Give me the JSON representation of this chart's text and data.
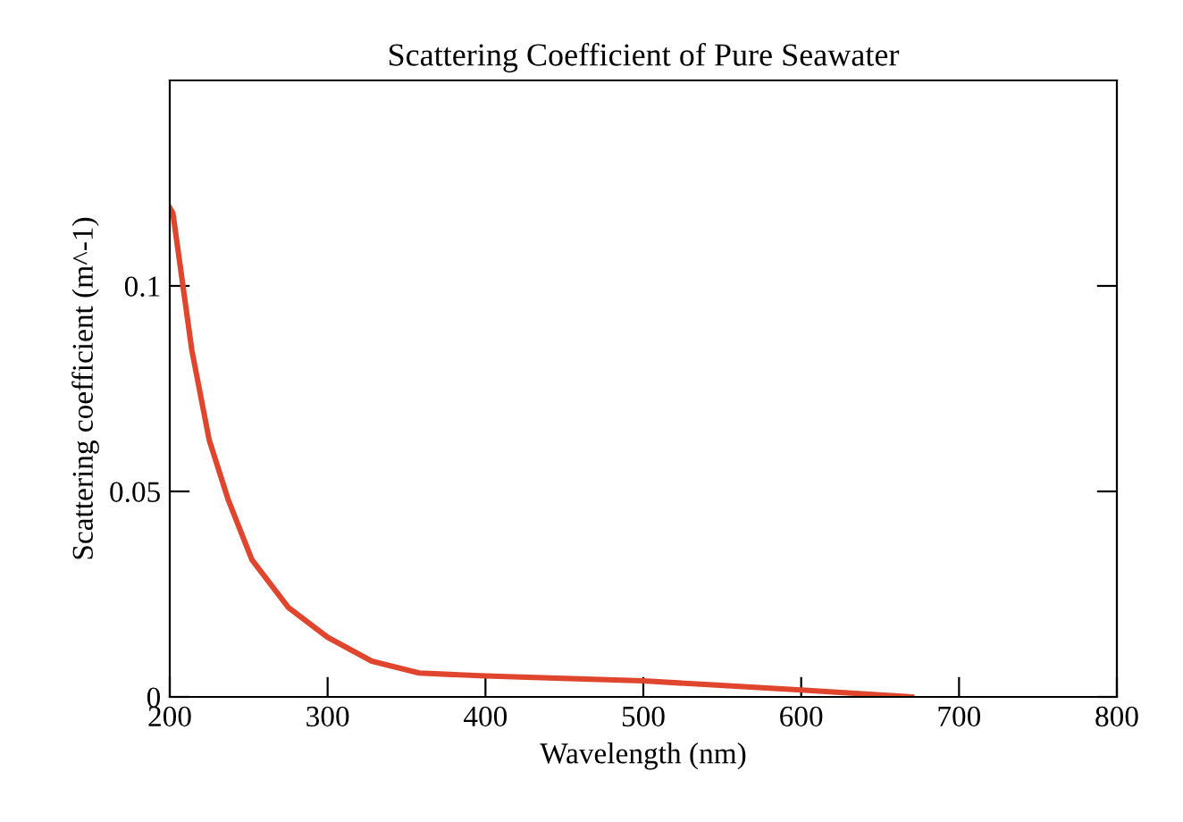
{
  "chart_data": {
    "type": "line",
    "title": "Scattering Coefficient of Pure Seawater",
    "xlabel": "Wavelength (nm)",
    "ylabel": "Scattering coefficient (m^-1)",
    "x": [
      200,
      202,
      214,
      225,
      237,
      252,
      275,
      300,
      328,
      358,
      400,
      500,
      600,
      670
    ],
    "series": [
      {
        "color": "#e0452e",
        "values": [
          0.119,
          0.1177,
          0.0843,
          0.0625,
          0.048,
          0.0334,
          0.0218,
          0.0145,
          0.0087,
          0.0058,
          0.0051,
          0.0039,
          0.0017,
          0
        ]
      }
    ],
    "xlim": [
      200,
      800
    ],
    "xticks": [
      200,
      300,
      400,
      500,
      600,
      700,
      800
    ],
    "ylim": [
      0,
      0.15
    ],
    "yticks": [
      {
        "value": 0,
        "label": "0"
      },
      0.05,
      0.1
    ],
    "grid": false,
    "legend": false
  }
}
